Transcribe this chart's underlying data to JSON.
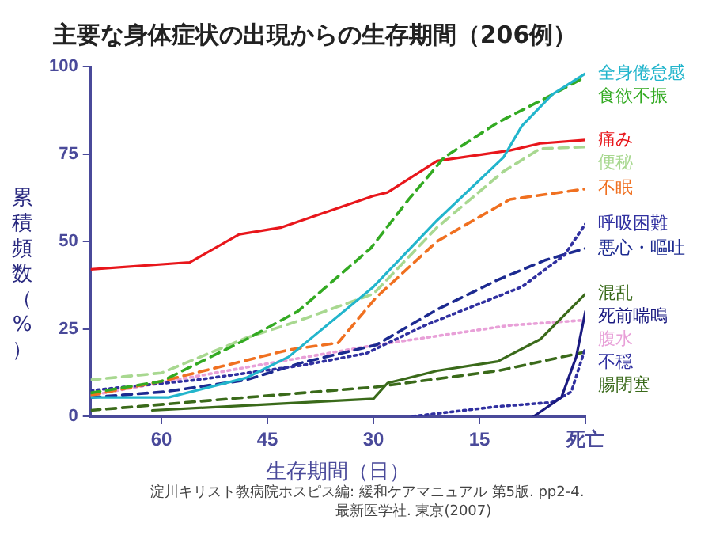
{
  "chart_data": {
    "type": "line",
    "title": "主要な身体症状の出現からの生存期間（206例）",
    "xlabel": "生存期間（日）",
    "ylabel": "累積頻数（%）",
    "xlim": [
      70,
      0
    ],
    "xticks": [
      60,
      45,
      30,
      15,
      {
        "value": 0,
        "label": "死亡"
      }
    ],
    "ylim": [
      0,
      100
    ],
    "yticks": [
      0,
      25,
      50,
      75,
      100
    ],
    "grid": false,
    "legend": false,
    "marker": "none",
    "annotations": [
      "淀川キリスト教病院ホスピス編: 緩和ケアマニュアル 第5版. pp2-4.",
      "最新医学社. 東京(2007)"
    ],
    "series": [
      {
        "name": "全身倦怠感",
        "color": "#22b5cc",
        "line_style": "solid",
        "x": [
          70,
          59,
          48,
          42,
          30,
          21,
          11.6,
          9,
          4.7,
          0
        ],
        "values": [
          5.4,
          5.4,
          11,
          17,
          37,
          56,
          74,
          83,
          92,
          98
        ]
      },
      {
        "name": "食欲不振",
        "color": "#33aa22",
        "line_style": "dashed",
        "x": [
          70,
          60,
          48,
          40.7,
          30.4,
          25,
          20,
          12.4,
          5.6,
          0
        ],
        "values": [
          6.7,
          10,
          22,
          30,
          48,
          62,
          74,
          84,
          91,
          97
        ]
      },
      {
        "name": "痛み",
        "color": "#e8161b",
        "line_style": "solid",
        "x": [
          70,
          56,
          49,
          43,
          30,
          28,
          21,
          10.7,
          6.4,
          0
        ],
        "values": [
          42,
          44,
          52,
          54,
          63,
          64,
          73,
          76,
          78,
          79
        ]
      },
      {
        "name": "便秘",
        "color": "#a8d890",
        "line_style": "dashed",
        "x": [
          70,
          60,
          48,
          41,
          30,
          21,
          11.6,
          6.4,
          0
        ],
        "values": [
          10.4,
          12.4,
          22.4,
          27,
          35,
          54,
          70,
          76.5,
          77
        ]
      },
      {
        "name": "不眠",
        "color": "#f07020",
        "line_style": "dashed",
        "x": [
          70,
          60,
          42,
          35,
          29.6,
          21,
          10.7,
          0
        ],
        "values": [
          6,
          10,
          19,
          21,
          34,
          50,
          62,
          65
        ]
      },
      {
        "name": "呼吸困難",
        "color": "#3030a0",
        "line_style": "dotted",
        "x": [
          70,
          55,
          40,
          31,
          22.7,
          9,
          3,
          0
        ],
        "values": [
          7.4,
          10.4,
          14.6,
          18,
          26,
          37,
          46,
          55
        ]
      },
      {
        "name": "悪心・嘔吐",
        "color": "#1c2a90",
        "line_style": "dashed",
        "x": [
          70,
          59.6,
          48,
          40,
          29.6,
          21,
          12.4,
          5.6,
          0
        ],
        "values": [
          5.4,
          7,
          10.4,
          15.4,
          20.4,
          30.5,
          39,
          44.7,
          48
        ]
      },
      {
        "name": "混乱",
        "color": "#3a6a1a",
        "line_style": "solid",
        "x": [
          61.3,
          30,
          28,
          21,
          12.4,
          6.4,
          0
        ],
        "values": [
          1.7,
          5,
          9.5,
          13,
          15.7,
          22,
          35
        ]
      },
      {
        "name": "死前喘鳴",
        "color": "#1a1a80",
        "line_style": "solid",
        "x": [
          7.3,
          3.4,
          1.3,
          0
        ],
        "values": [
          0,
          5.4,
          17,
          30
        ]
      },
      {
        "name": "腹水",
        "color": "#e8a0d8",
        "line_style": "dotted",
        "x": [
          70,
          48,
          29.6,
          10.7,
          0
        ],
        "values": [
          6,
          14,
          20.4,
          26,
          27.5
        ]
      },
      {
        "name": "不穏",
        "color": "#3030a0",
        "line_style": "dotted",
        "x": [
          24.4,
          12.4,
          4.7,
          2,
          0
        ],
        "values": [
          0,
          2.8,
          4,
          7,
          19.6
        ]
      },
      {
        "name": "腸閉塞",
        "color": "#3a6a1a",
        "line_style": "dashed",
        "x": [
          70,
          48,
          29.6,
          12.4,
          0
        ],
        "values": [
          1.7,
          5.4,
          8.4,
          13,
          18.4
        ]
      }
    ]
  }
}
